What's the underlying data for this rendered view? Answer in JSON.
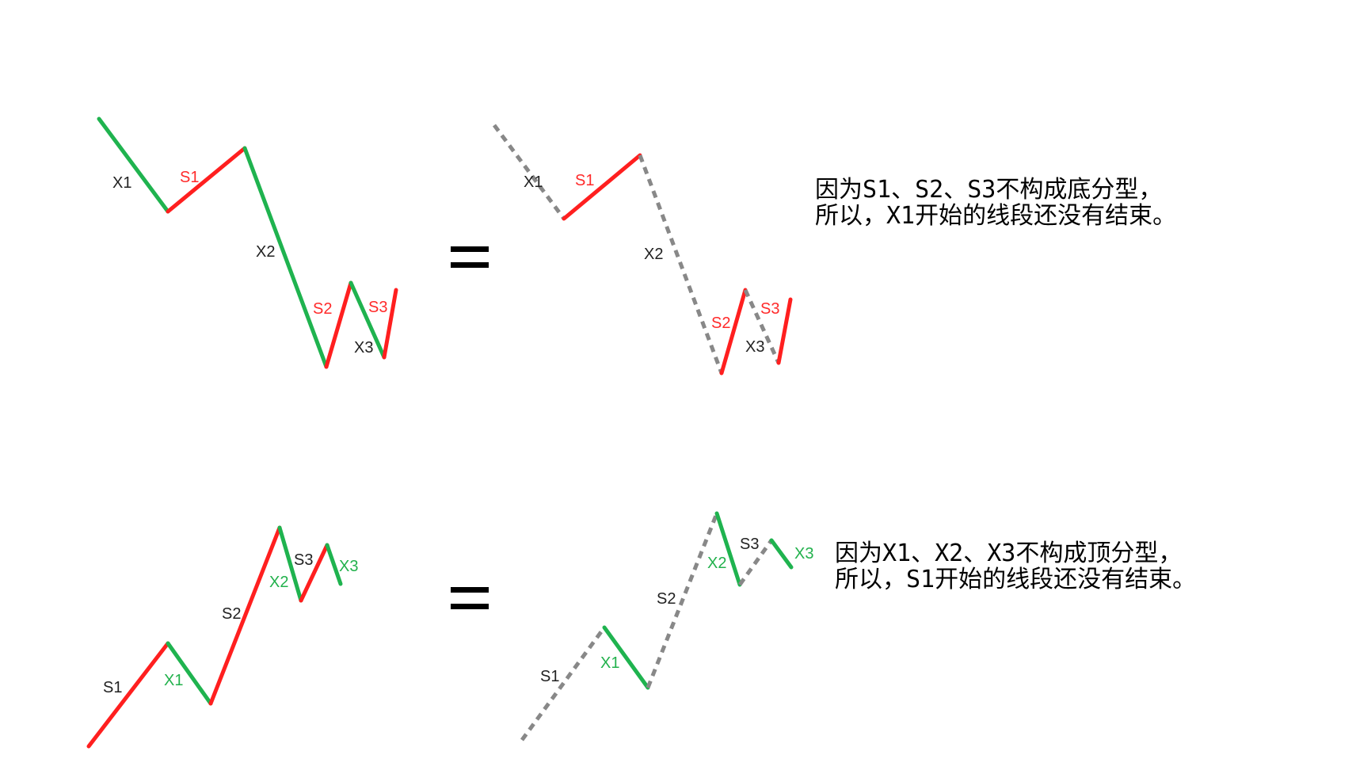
{
  "colors": {
    "up": "#ff1f1f",
    "down": "#1fb34f",
    "dashed": "#888888",
    "label_dark": "#222222",
    "label_red": "#ff2a2a",
    "label_green": "#22b14c"
  },
  "top_example": {
    "left_labels": [
      "X1",
      "S1",
      "X2",
      "S2",
      "S3",
      "X3"
    ],
    "right_labels": [
      "X1",
      "S1",
      "X2",
      "S2",
      "S3",
      "X3"
    ],
    "equals_sign": "=",
    "note": {
      "line1": "因为S1、S2、S3不构成底分型，",
      "line2": "所以，X1开始的线段还没有结束。"
    }
  },
  "bottom_example": {
    "left_labels": [
      "S1",
      "X1",
      "S2",
      "X2",
      "S3",
      "X3"
    ],
    "right_labels": [
      "S1",
      "X1",
      "S2",
      "X2",
      "S3",
      "X3"
    ],
    "equals_sign": "=",
    "note": {
      "line1": "因为X1、X2、X3不构成顶分型，",
      "line2": "所以，S1开始的线段还没有结束。"
    }
  }
}
